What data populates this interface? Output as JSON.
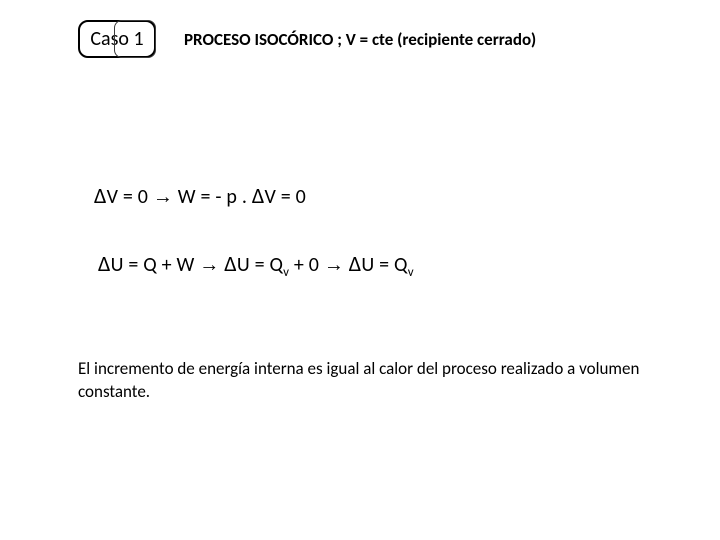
{
  "badge": {
    "text": "Caso 1"
  },
  "header": {
    "process_line": "PROCESO ISOCÓRICO ; V = cte (recipiente cerrado)"
  },
  "equations": {
    "line1": {
      "d1": "Δ",
      "p1": "V = 0  ",
      "arrow1": "→",
      "p2": "  W = - p . ",
      "d2": "Δ",
      "p3": "V = 0"
    },
    "line2": {
      "d1": "Δ",
      "p1": "U = Q + W  ",
      "arrow1": "→",
      "sp1": "  ",
      "d2": "Δ",
      "p2": "U = Q",
      "sub1": "v",
      "p3": " + 0    ",
      "arrow2": "→",
      "sp2": "   ",
      "d3": "Δ",
      "p4": "U = Q",
      "sub2": "v"
    }
  },
  "explanation": {
    "text": "El incremento de energía interna es igual al calor del proceso realizado a volumen constante."
  },
  "colors": {
    "background": "#ffffff",
    "text": "#000000",
    "border": "#000000"
  },
  "typography": {
    "family": "Calibri",
    "title_size_pt": 17,
    "equation_size_pt": 20,
    "body_size_pt": 17,
    "delta_size_pt": 22
  }
}
